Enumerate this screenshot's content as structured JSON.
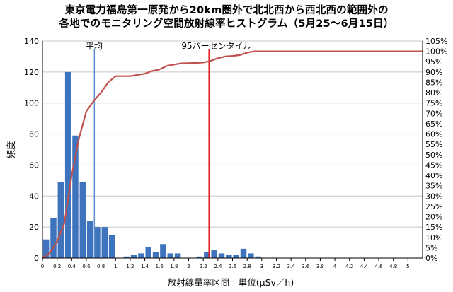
{
  "chart_data": {
    "type": "bar",
    "title_line1": "東京電力福島第一原発から20km圏外で北北西から西北西の範囲外の",
    "title_line2": "各地でのモニタリング空間放射線率ヒストグラム（5月25～6月15日）",
    "xlabel": "放射線量率区間　単位(μSv／h)",
    "ylabel": "頻度",
    "ylim": [
      0,
      140
    ],
    "y2lim": [
      0,
      105
    ],
    "xlim": [
      0,
      5.2
    ],
    "yticks": [
      "0",
      "20",
      "40",
      "60",
      "80",
      "100",
      "120",
      "140"
    ],
    "y2ticks": [
      "0%",
      "5%",
      "10%",
      "15%",
      "20%",
      "25%",
      "30%",
      "35%",
      "40%",
      "45%",
      "50%",
      "55%",
      "60%",
      "65%",
      "70%",
      "75%",
      "80%",
      "85%",
      "90%",
      "95%",
      "100%",
      "105%"
    ],
    "xticks": [
      "0",
      "0.2",
      "0.4",
      "0.6",
      "0.8",
      "1",
      "1.2",
      "1.4",
      "1.6",
      "1.8",
      "2",
      "2.2",
      "2.4",
      "2.6",
      "2.8",
      "3",
      "3.2",
      "3.4",
      "3.6",
      "3.8",
      "4",
      "4.2",
      "4.4",
      "4.6",
      "4.8",
      "5"
    ],
    "bins": {
      "x": [
        0.05,
        0.15,
        0.25,
        0.35,
        0.45,
        0.55,
        0.65,
        0.75,
        0.85,
        0.95,
        1.05,
        1.15,
        1.25,
        1.35,
        1.45,
        1.55,
        1.65,
        1.75,
        1.85,
        1.95,
        2.05,
        2.15,
        2.25,
        2.35,
        2.45,
        2.55,
        2.65,
        2.75,
        2.85,
        2.95,
        3.05,
        3.15,
        3.25,
        3.35,
        3.45,
        3.55,
        3.65,
        3.75,
        3.85,
        3.95,
        4.05,
        4.15,
        4.25,
        4.35,
        4.45,
        4.55,
        4.65,
        4.75,
        4.85,
        4.95,
        5.05
      ],
      "values": [
        12,
        26,
        49,
        120,
        79,
        49,
        24,
        20,
        20,
        15,
        0,
        1,
        2,
        3,
        7,
        4,
        9,
        3,
        3,
        0,
        0,
        1,
        4,
        5,
        3,
        2,
        2,
        6,
        3,
        1,
        0,
        0,
        0,
        0,
        0,
        0,
        0,
        0,
        0,
        0,
        0,
        0,
        0,
        0,
        0,
        0,
        0,
        0,
        0,
        0,
        0
      ]
    },
    "cumulative": {
      "x": [
        0,
        0.1,
        0.2,
        0.3,
        0.4,
        0.5,
        0.6,
        0.7,
        0.8,
        0.9,
        1.0,
        1.1,
        1.2,
        1.4,
        1.5,
        1.6,
        1.7,
        1.8,
        1.9,
        2.1,
        2.2,
        2.3,
        2.4,
        2.5,
        2.6,
        2.7,
        2.8,
        2.9,
        3.0,
        3.2,
        5.2
      ],
      "values": [
        0,
        2.5,
        8,
        17,
        40,
        58,
        71,
        76,
        80,
        85,
        88,
        88,
        88,
        89.2,
        90.5,
        91.2,
        93,
        93.6,
        94.2,
        94.4,
        94.6,
        95.4,
        96.7,
        97.5,
        97.8,
        98.2,
        99.4,
        100,
        100,
        100,
        100
      ]
    },
    "mean_x": 0.71,
    "mean_label": "平均",
    "p95_x": 2.28,
    "p95_label": "95パーセンタイル",
    "colors": {
      "bar": "#3d74bd",
      "cumulative": "#c0504d",
      "mean_line": "#5b8fd0",
      "p95_line": "#e0201c",
      "grid": "#c8c8c8"
    }
  }
}
